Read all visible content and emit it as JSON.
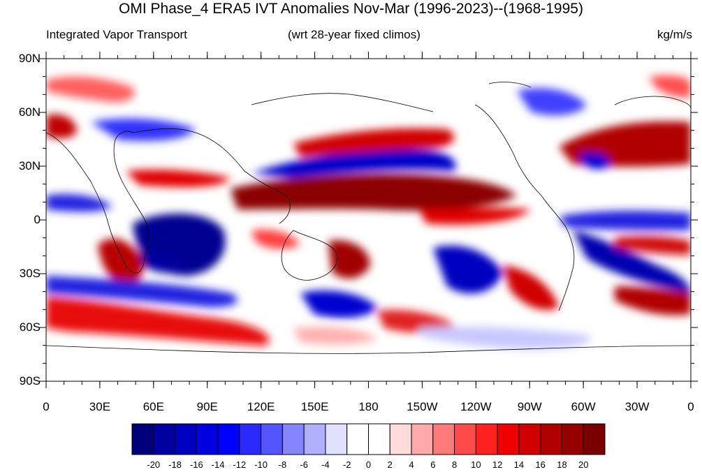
{
  "title": "OMI Phase_4 ERA5 IVT Anomalies Nov-Mar (1996-2023)--(1968-1995)",
  "left_subtitle": "Integrated Vapor Transport",
  "center_subtitle": "(wrt 28-year fixed climos)",
  "right_subtitle": "kg/m/s",
  "lat_labels": [
    "90N",
    "60N",
    "30N",
    "0",
    "30S",
    "60S",
    "90S"
  ],
  "lon_labels": [
    "0",
    "30E",
    "60E",
    "90E",
    "120E",
    "150E",
    "180",
    "150W",
    "120W",
    "90W",
    "60W",
    "30W",
    "0"
  ],
  "colorbar": {
    "labels": [
      "-20",
      "-18",
      "-16",
      "-14",
      "-12",
      "-10",
      "-8",
      "-6",
      "-4",
      "-2",
      "0",
      "2",
      "4",
      "6",
      "8",
      "10",
      "12",
      "14",
      "16",
      "18",
      "20"
    ],
    "colors": [
      "#00007a",
      "#0000a0",
      "#0000c0",
      "#0000e0",
      "#0000ff",
      "#2a2aff",
      "#5555ff",
      "#8585ff",
      "#b0b0ff",
      "#e0e0ff",
      "#ffffff",
      "#ffffff",
      "#ffdcdc",
      "#ffaaaa",
      "#ff7a7a",
      "#ff4a4a",
      "#ff2020",
      "#f00000",
      "#d00000",
      "#b00000",
      "#960000",
      "#7a0000"
    ]
  },
  "icons": {
    "coastlines": "continent-outline-icon"
  }
}
